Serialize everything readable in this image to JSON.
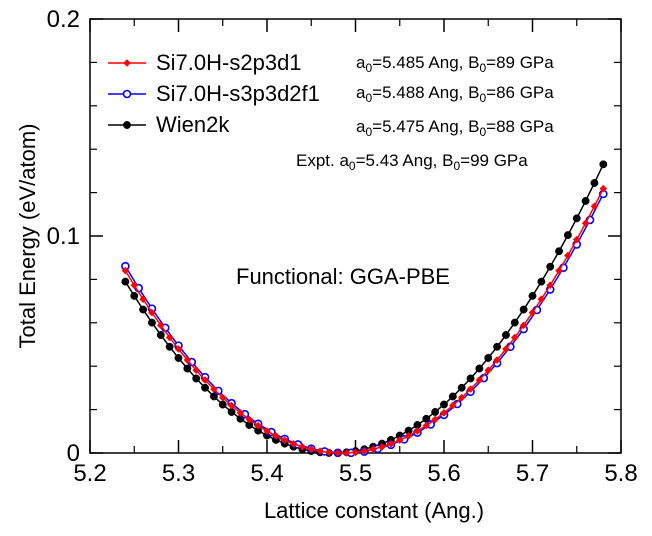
{
  "chart_data": {
    "type": "line",
    "xlabel": "Lattice constant (Ang.)",
    "ylabel": "Total Energy (eV/atom)",
    "xlim": [
      5.2,
      5.8
    ],
    "ylim": [
      0,
      0.2
    ],
    "xticks": [
      5.2,
      5.3,
      5.4,
      5.5,
      5.6,
      5.7,
      5.8
    ],
    "xtick_labels": [
      "5.2",
      "5.3",
      "5.4",
      "5.5",
      "5.6",
      "5.7",
      "5.8"
    ],
    "yticks": [
      0,
      0.1,
      0.2
    ],
    "ytick_labels": [
      "0",
      "0.1",
      "0.2"
    ],
    "grid": false,
    "legend_position": "top-left",
    "annotation": "Functional: GGA-PBE",
    "expt_text": {
      "prefix": "Expt. a",
      "sub1": "0",
      "mid": "=5.43  Ang,    B",
      "sub2": "0",
      "suffix": "=99 GPa"
    },
    "series": [
      {
        "name": "Si7.0H-s2p3d1",
        "color": "#ff0000",
        "marker": "diamond",
        "a0": 5.485,
        "curvature": 1.4,
        "x_range": [
          5.24,
          5.785
        ],
        "step": 0.01,
        "param_text": {
          "prefix": "a",
          "sub1": "0",
          "mid": "=5.485 Ang,  B",
          "sub2": "0",
          "suffix": "=89 GPa"
        }
      },
      {
        "name": "Si7.0H-s3p3d2f1",
        "color": "#0000ff",
        "marker": "open-circle",
        "a0": 5.488,
        "curvature": 1.4,
        "x_range": [
          5.24,
          5.785
        ],
        "step": 0.015,
        "param_text": {
          "prefix": "a",
          "sub1": "0",
          "mid": "=5.488 Ang,  B",
          "sub2": "0",
          "suffix": "=86 GPa"
        }
      },
      {
        "name": "Wien2k",
        "color": "#000000",
        "marker": "filled-circle",
        "a0": 5.475,
        "curvature": 1.43,
        "x_range": [
          5.24,
          5.78
        ],
        "step": 0.01,
        "param_text": {
          "prefix": "a",
          "sub1": "0",
          "mid": "=5.475 Ang,  B",
          "sub2": "0",
          "suffix": "=88 GPa"
        }
      }
    ]
  }
}
